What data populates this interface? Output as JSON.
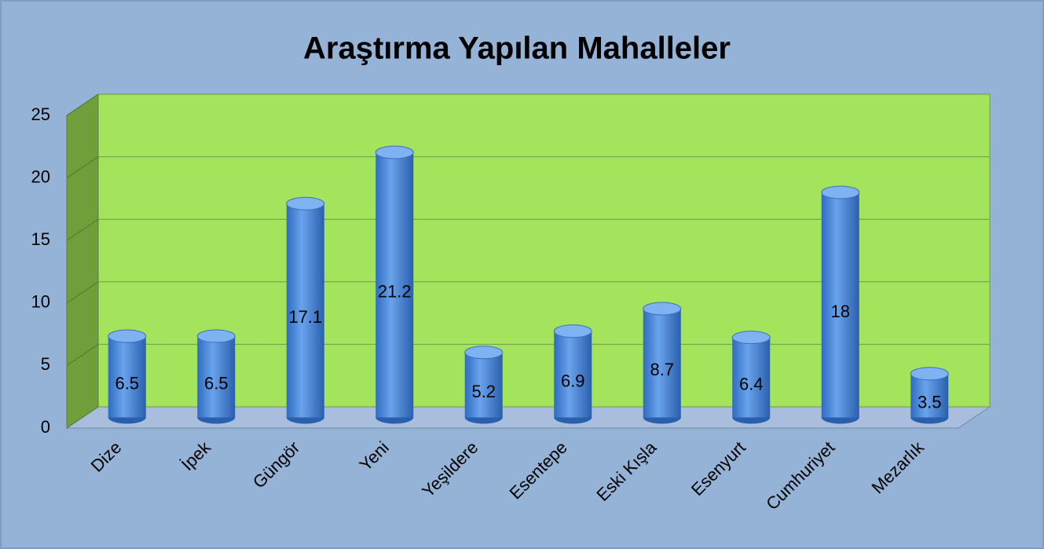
{
  "chart_data": {
    "type": "bar",
    "title": "Araştırma Yapılan Mahalleler",
    "categories": [
      "Dize",
      "İpek",
      "Güngör",
      "Yeni",
      "Yeşildere",
      "Esentepe",
      "Eski Kışla",
      "Esenyurt",
      "Cumhuriyet",
      "Mezarlık"
    ],
    "values": [
      6.5,
      6.5,
      17.1,
      21.2,
      5.2,
      6.9,
      8.7,
      6.4,
      18,
      3.5
    ],
    "color": "#4a86d8",
    "ylim": [
      0,
      25
    ],
    "yticks": [
      0,
      5,
      10,
      15,
      20,
      25
    ],
    "grid": true
  }
}
